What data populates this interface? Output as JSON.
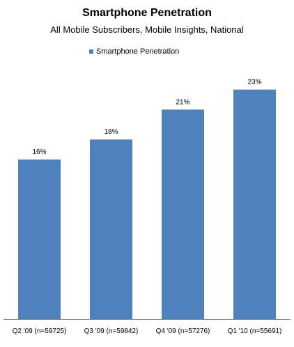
{
  "chart_data": {
    "type": "bar",
    "title": "Smartphone Penetration",
    "subtitle": "All Mobile Subscribers, Mobile Insights, National",
    "categories": [
      "Q2 '09 (n=59725)",
      "Q3 '09 (n=59842)",
      "Q4 '09 (n=57276)",
      "Q1 '10 (n=55691)"
    ],
    "series": [
      {
        "name": "Smartphone Penetration",
        "values": [
          16,
          18,
          21,
          23
        ],
        "labels": [
          "16%",
          "18%",
          "21%",
          "23%"
        ],
        "color": "#4F81BD"
      }
    ],
    "xlabel": "",
    "ylabel": "",
    "ylim": [
      0,
      25
    ],
    "grid": false,
    "legend_position": "top-center"
  }
}
